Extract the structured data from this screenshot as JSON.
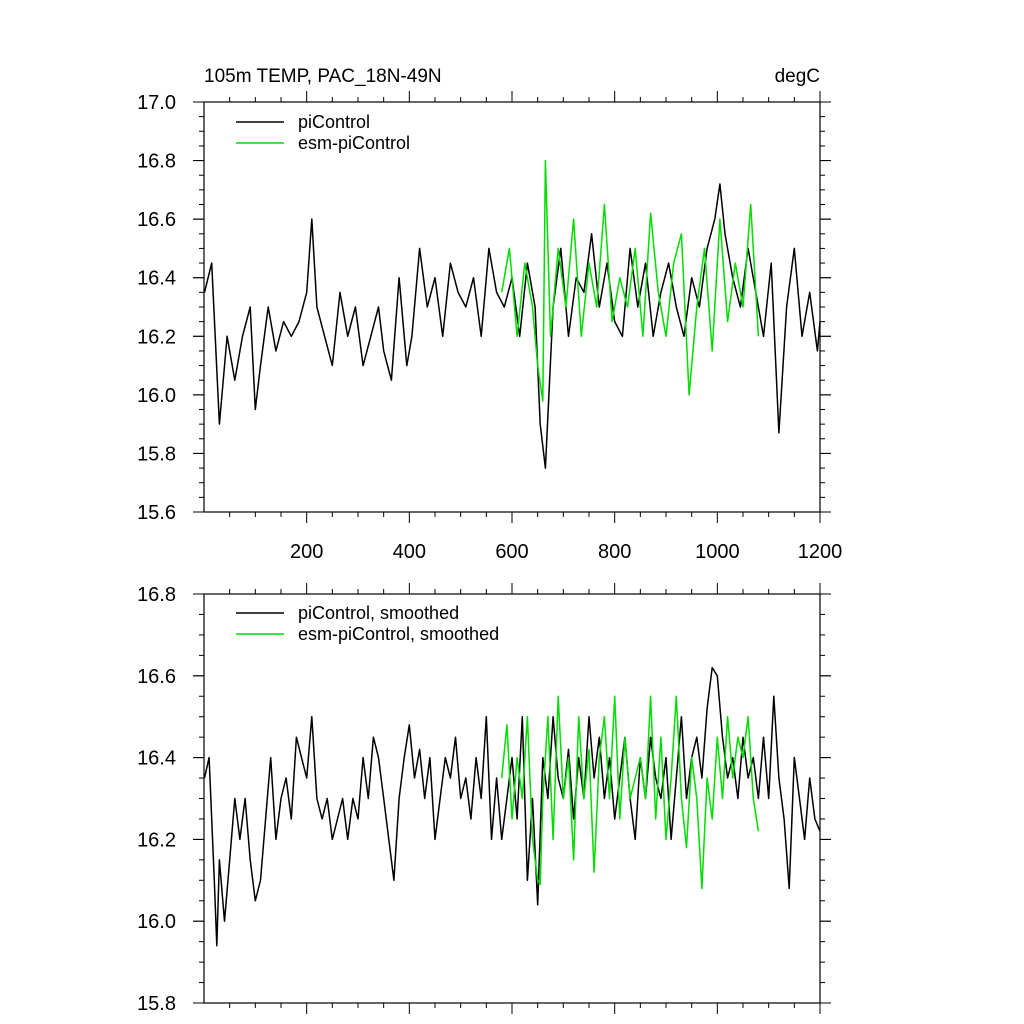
{
  "chart_data": [
    {
      "type": "line",
      "title": "105m TEMP, PAC_18N-49N",
      "units": "degC",
      "xlabel": "",
      "ylabel": "",
      "xlim": [
        0,
        1200
      ],
      "ylim": [
        15.6,
        17.0
      ],
      "x_ticks": [
        200,
        400,
        600,
        800,
        1000,
        1200
      ],
      "x_tick_labels": [
        "200",
        "400",
        "600",
        "800",
        "1000",
        "1200"
      ],
      "y_ticks": [
        15.6,
        15.8,
        16.0,
        16.2,
        16.4,
        16.6,
        16.8,
        17.0
      ],
      "y_tick_labels": [
        "15.6",
        "15.8",
        "16.0",
        "16.2",
        "16.4",
        "16.6",
        "16.8",
        "17.0"
      ],
      "grid": false,
      "legend_position": "top-left",
      "series": [
        {
          "name": "piControl",
          "color": "#000000",
          "x": [
            1,
            15,
            30,
            45,
            60,
            75,
            90,
            100,
            110,
            125,
            140,
            155,
            170,
            185,
            200,
            210,
            220,
            235,
            250,
            265,
            280,
            295,
            310,
            325,
            340,
            350,
            365,
            380,
            395,
            405,
            420,
            435,
            450,
            465,
            480,
            495,
            510,
            525,
            540,
            555,
            570,
            585,
            600,
            615,
            630,
            645,
            655,
            665,
            680,
            695,
            710,
            725,
            740,
            755,
            770,
            785,
            800,
            815,
            830,
            845,
            860,
            875,
            890,
            905,
            920,
            935,
            950,
            965,
            980,
            995,
            1005,
            1015,
            1030,
            1045,
            1060,
            1075,
            1090,
            1105,
            1120,
            1135,
            1150,
            1165,
            1180,
            1195,
            1200
          ],
          "values": [
            16.35,
            16.45,
            15.9,
            16.2,
            16.05,
            16.2,
            16.3,
            15.95,
            16.1,
            16.3,
            16.15,
            16.25,
            16.2,
            16.25,
            16.35,
            16.6,
            16.3,
            16.2,
            16.1,
            16.35,
            16.2,
            16.3,
            16.1,
            16.2,
            16.3,
            16.15,
            16.05,
            16.4,
            16.1,
            16.2,
            16.5,
            16.3,
            16.4,
            16.2,
            16.45,
            16.35,
            16.3,
            16.4,
            16.2,
            16.5,
            16.35,
            16.3,
            16.4,
            16.2,
            16.45,
            16.3,
            15.9,
            15.75,
            16.3,
            16.5,
            16.2,
            16.4,
            16.35,
            16.55,
            16.3,
            16.45,
            16.25,
            16.2,
            16.5,
            16.3,
            16.45,
            16.2,
            16.35,
            16.45,
            16.3,
            16.2,
            16.4,
            16.3,
            16.5,
            16.6,
            16.72,
            16.55,
            16.4,
            16.3,
            16.5,
            16.35,
            16.2,
            16.45,
            15.87,
            16.3,
            16.5,
            16.2,
            16.35,
            16.15,
            16.25
          ]
        },
        {
          "name": "esm-piControl",
          "color": "#00dd00",
          "x": [
            580,
            595,
            610,
            625,
            640,
            650,
            660,
            665,
            675,
            690,
            705,
            720,
            735,
            750,
            765,
            780,
            795,
            810,
            825,
            840,
            855,
            870,
            885,
            900,
            915,
            930,
            945,
            960,
            975,
            990,
            1005,
            1020,
            1035,
            1050,
            1065,
            1080
          ],
          "values": [
            16.35,
            16.5,
            16.2,
            16.45,
            16.3,
            16.1,
            15.98,
            16.8,
            16.2,
            16.5,
            16.3,
            16.6,
            16.2,
            16.45,
            16.3,
            16.65,
            16.25,
            16.4,
            16.3,
            16.5,
            16.2,
            16.62,
            16.35,
            16.2,
            16.45,
            16.55,
            16.0,
            16.3,
            16.5,
            16.15,
            16.6,
            16.25,
            16.45,
            16.3,
            16.65,
            16.2
          ]
        }
      ]
    },
    {
      "type": "line",
      "title": "",
      "xlabel": "",
      "ylabel": "",
      "xlim": [
        0,
        1200
      ],
      "ylim": [
        15.8,
        16.8
      ],
      "y_ticks": [
        15.8,
        16.0,
        16.2,
        16.4,
        16.6,
        16.8
      ],
      "y_tick_labels": [
        "15.8",
        "16.0",
        "16.2",
        "16.4",
        "16.6",
        "16.8"
      ],
      "grid": false,
      "legend_position": "top-left",
      "series": [
        {
          "name": "piControl, smoothed",
          "color": "#000000",
          "x": [
            1,
            10,
            20,
            25,
            30,
            40,
            50,
            60,
            70,
            80,
            90,
            100,
            110,
            120,
            130,
            140,
            150,
            160,
            170,
            180,
            190,
            200,
            210,
            220,
            230,
            240,
            250,
            260,
            270,
            280,
            290,
            300,
            310,
            320,
            330,
            340,
            350,
            360,
            370,
            380,
            390,
            400,
            410,
            420,
            430,
            440,
            450,
            460,
            470,
            480,
            490,
            500,
            510,
            520,
            530,
            540,
            550,
            560,
            570,
            580,
            590,
            600,
            610,
            620,
            630,
            640,
            650,
            660,
            670,
            680,
            690,
            700,
            710,
            720,
            730,
            740,
            750,
            760,
            770,
            780,
            790,
            800,
            810,
            820,
            830,
            840,
            850,
            860,
            870,
            880,
            890,
            900,
            910,
            920,
            930,
            940,
            950,
            960,
            970,
            980,
            990,
            1000,
            1010,
            1020,
            1030,
            1040,
            1050,
            1060,
            1070,
            1080,
            1090,
            1100,
            1110,
            1120,
            1130,
            1140,
            1150,
            1160,
            1170,
            1180,
            1190,
            1200
          ],
          "values": [
            16.35,
            16.4,
            16.1,
            15.94,
            16.15,
            16.0,
            16.15,
            16.3,
            16.2,
            16.3,
            16.15,
            16.05,
            16.1,
            16.25,
            16.4,
            16.2,
            16.3,
            16.35,
            16.25,
            16.45,
            16.4,
            16.35,
            16.5,
            16.3,
            16.25,
            16.3,
            16.2,
            16.25,
            16.3,
            16.2,
            16.3,
            16.25,
            16.4,
            16.3,
            16.45,
            16.4,
            16.3,
            16.2,
            16.1,
            16.3,
            16.4,
            16.48,
            16.35,
            16.42,
            16.3,
            16.4,
            16.2,
            16.3,
            16.4,
            16.35,
            16.45,
            16.3,
            16.35,
            16.25,
            16.4,
            16.3,
            16.5,
            16.2,
            16.35,
            16.2,
            16.3,
            16.4,
            16.25,
            16.5,
            16.1,
            16.3,
            16.04,
            16.4,
            16.3,
            16.5,
            16.35,
            16.3,
            16.42,
            16.25,
            16.4,
            16.3,
            16.5,
            16.35,
            16.45,
            16.3,
            16.4,
            16.25,
            16.35,
            16.45,
            16.3,
            16.2,
            16.4,
            16.3,
            16.45,
            16.35,
            16.3,
            16.4,
            16.2,
            16.35,
            16.5,
            16.3,
            16.4,
            16.45,
            16.35,
            16.52,
            16.62,
            16.6,
            16.45,
            16.35,
            16.4,
            16.3,
            16.45,
            16.35,
            16.4,
            16.3,
            16.45,
            16.3,
            16.55,
            16.35,
            16.25,
            16.08,
            16.4,
            16.3,
            16.2,
            16.35,
            16.25,
            16.22
          ]
        },
        {
          "name": "esm-piControl, smoothed",
          "color": "#00dd00",
          "x": [
            580,
            590,
            600,
            610,
            620,
            630,
            640,
            650,
            655,
            660,
            670,
            680,
            690,
            700,
            710,
            720,
            730,
            740,
            750,
            760,
            770,
            780,
            790,
            800,
            810,
            820,
            830,
            840,
            850,
            860,
            870,
            880,
            890,
            900,
            910,
            920,
            930,
            940,
            950,
            960,
            970,
            980,
            990,
            1000,
            1010,
            1020,
            1030,
            1040,
            1050,
            1060,
            1070,
            1080
          ],
          "values": [
            16.35,
            16.48,
            16.25,
            16.4,
            16.3,
            16.5,
            16.2,
            16.1,
            16.09,
            16.3,
            16.5,
            16.2,
            16.55,
            16.3,
            16.4,
            16.15,
            16.5,
            16.3,
            16.42,
            16.12,
            16.4,
            16.5,
            16.3,
            16.55,
            16.25,
            16.45,
            16.3,
            16.35,
            16.4,
            16.3,
            16.55,
            16.25,
            16.45,
            16.2,
            16.35,
            16.55,
            16.3,
            16.18,
            16.4,
            16.3,
            16.08,
            16.35,
            16.25,
            16.45,
            16.3,
            16.5,
            16.35,
            16.45,
            16.4,
            16.5,
            16.3,
            16.22
          ]
        }
      ]
    }
  ]
}
